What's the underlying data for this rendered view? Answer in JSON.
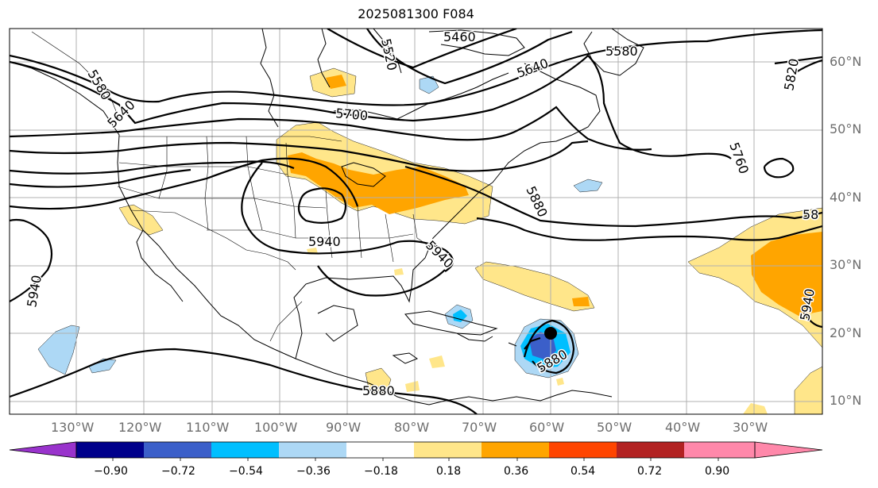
{
  "title": "2025081300 F084",
  "lon_labels": [
    "130°W",
    "120°W",
    "110°W",
    "100°W",
    "90°W",
    "80°W",
    "70°W",
    "60°W",
    "50°W",
    "40°W",
    "30°W"
  ],
  "lat_labels": [
    "60°N",
    "50°N",
    "40°N",
    "30°N",
    "20°N",
    "10°N"
  ],
  "contour_labels": [
    "5460",
    "5520",
    "5580",
    "5640",
    "5700",
    "5820",
    "5760",
    "5880",
    "5940",
    "58",
    "5580",
    "5640",
    "5940",
    "5940",
    "5880",
    "5880",
    "5940"
  ],
  "colorbar": {
    "ticks": [
      "−0.90",
      "−0.72",
      "−0.54",
      "−0.36",
      "−0.18",
      "0.18",
      "0.36",
      "0.54",
      "0.72",
      "0.90"
    ],
    "colors": [
      "#9933cc",
      "#00008b",
      "#3b5fc9",
      "#00bfff",
      "#add8f5",
      "#ffffff",
      "#ffe68a",
      "#ffa500",
      "#ff4500",
      "#b22222",
      "#ff88aa"
    ]
  },
  "colors": {
    "pos1": "#ffe68a",
    "pos2": "#ffa500",
    "neg1": "#add8f5",
    "neg2": "#00bfff",
    "neg3": "#3b5fc9"
  }
}
